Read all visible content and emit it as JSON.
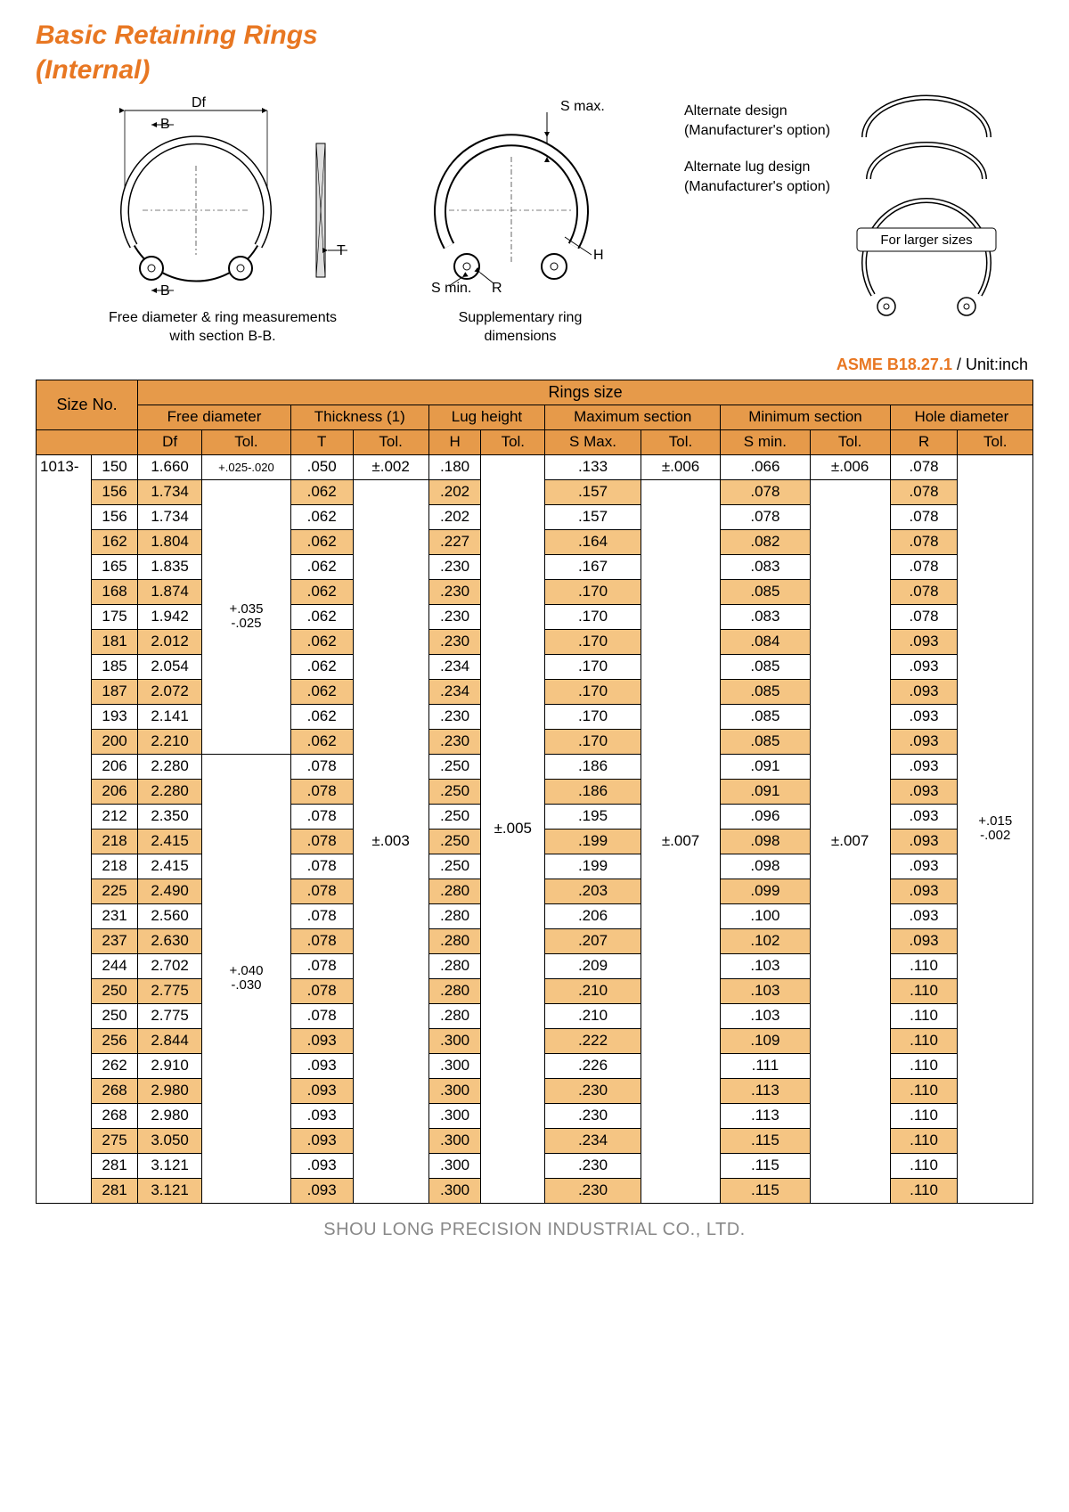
{
  "title_line1": "Basic Retaining Rings",
  "title_line2": "(Internal)",
  "diagrams": {
    "d1_Df": "Df",
    "d1_B1": "B",
    "d1_B2": "B",
    "d1_T": "T",
    "d1_caption": "Free diameter & ring measurements\nwith section B-B.",
    "d2_Smax": "S max.",
    "d2_Smin": "S min.",
    "d2_R": "R",
    "d2_H": "H",
    "d2_caption": "Supplementary ring\ndimensions",
    "side_alt": "Alternate design\n(Manufacturer's option)",
    "side_altlug": "Alternate lug design\n(Manufacturer's option)",
    "side_larger": "For larger sizes"
  },
  "spec": {
    "code": "ASME B18.27.1",
    "unit": " / Unit:inch"
  },
  "headers": {
    "sizeNo": "Size No.",
    "ringsSize": "Rings size",
    "groups": [
      "Free diameter",
      "Thickness (1)",
      "Lug height",
      "Maximum section",
      "Minimum section",
      "Hole diameter"
    ],
    "sub": [
      "Df",
      "Tol.",
      "T",
      "Tol.",
      "H",
      "Tol.",
      "S Max.",
      "Tol.",
      "S min.",
      "Tol.",
      "R",
      "Tol."
    ]
  },
  "prefix": "1013-",
  "colors": {
    "accent": "#e87722",
    "header_bg": "#e69a4a",
    "stripe_bg": "#f5c583",
    "border": "#000000",
    "footer_text": "#888888",
    "watermark": "#e8e8e8"
  },
  "typography": {
    "title_size": 30,
    "body_size": 17,
    "caption_size": 16,
    "footer_size": 20
  },
  "tolBlocks": {
    "df1": "+.025-.020",
    "df2_top": "+.035",
    "df2_bot": "-.025",
    "df3_top": "+.040",
    "df3_bot": "-.030",
    "t1": "±.002",
    "t2": "±.003",
    "h": "±.005",
    "smax1": "±.006",
    "smax2": "±.007",
    "smin1": "±.006",
    "smin2": "±.007",
    "r_top": "+.015",
    "r_bot": "-.002"
  },
  "rows": [
    {
      "n": "150",
      "df": "1.660",
      "t": ".050",
      "h": ".180",
      "sx": ".133",
      "sn": ".066",
      "r": ".078"
    },
    {
      "n": "156",
      "df": "1.734",
      "t": ".062",
      "h": ".202",
      "sx": ".157",
      "sn": ".078",
      "r": ".078"
    },
    {
      "n": "156",
      "df": "1.734",
      "t": ".062",
      "h": ".202",
      "sx": ".157",
      "sn": ".078",
      "r": ".078"
    },
    {
      "n": "162",
      "df": "1.804",
      "t": ".062",
      "h": ".227",
      "sx": ".164",
      "sn": ".082",
      "r": ".078"
    },
    {
      "n": "165",
      "df": "1.835",
      "t": ".062",
      "h": ".230",
      "sx": ".167",
      "sn": ".083",
      "r": ".078"
    },
    {
      "n": "168",
      "df": "1.874",
      "t": ".062",
      "h": ".230",
      "sx": ".170",
      "sn": ".085",
      "r": ".078"
    },
    {
      "n": "175",
      "df": "1.942",
      "t": ".062",
      "h": ".230",
      "sx": ".170",
      "sn": ".083",
      "r": ".078"
    },
    {
      "n": "181",
      "df": "2.012",
      "t": ".062",
      "h": ".230",
      "sx": ".170",
      "sn": ".084",
      "r": ".093"
    },
    {
      "n": "185",
      "df": "2.054",
      "t": ".062",
      "h": ".234",
      "sx": ".170",
      "sn": ".085",
      "r": ".093"
    },
    {
      "n": "187",
      "df": "2.072",
      "t": ".062",
      "h": ".234",
      "sx": ".170",
      "sn": ".085",
      "r": ".093"
    },
    {
      "n": "193",
      "df": "2.141",
      "t": ".062",
      "h": ".230",
      "sx": ".170",
      "sn": ".085",
      "r": ".093"
    },
    {
      "n": "200",
      "df": "2.210",
      "t": ".062",
      "h": ".230",
      "sx": ".170",
      "sn": ".085",
      "r": ".093"
    },
    {
      "n": "206",
      "df": "2.280",
      "t": ".078",
      "h": ".250",
      "sx": ".186",
      "sn": ".091",
      "r": ".093"
    },
    {
      "n": "206",
      "df": "2.280",
      "t": ".078",
      "h": ".250",
      "sx": ".186",
      "sn": ".091",
      "r": ".093"
    },
    {
      "n": "212",
      "df": "2.350",
      "t": ".078",
      "h": ".250",
      "sx": ".195",
      "sn": ".096",
      "r": ".093"
    },
    {
      "n": "218",
      "df": "2.415",
      "t": ".078",
      "h": ".250",
      "sx": ".199",
      "sn": ".098",
      "r": ".093"
    },
    {
      "n": "218",
      "df": "2.415",
      "t": ".078",
      "h": ".250",
      "sx": ".199",
      "sn": ".098",
      "r": ".093"
    },
    {
      "n": "225",
      "df": "2.490",
      "t": ".078",
      "h": ".280",
      "sx": ".203",
      "sn": ".099",
      "r": ".093"
    },
    {
      "n": "231",
      "df": "2.560",
      "t": ".078",
      "h": ".280",
      "sx": ".206",
      "sn": ".100",
      "r": ".093"
    },
    {
      "n": "237",
      "df": "2.630",
      "t": ".078",
      "h": ".280",
      "sx": ".207",
      "sn": ".102",
      "r": ".093"
    },
    {
      "n": "244",
      "df": "2.702",
      "t": ".078",
      "h": ".280",
      "sx": ".209",
      "sn": ".103",
      "r": ".110"
    },
    {
      "n": "250",
      "df": "2.775",
      "t": ".078",
      "h": ".280",
      "sx": ".210",
      "sn": ".103",
      "r": ".110"
    },
    {
      "n": "250",
      "df": "2.775",
      "t": ".078",
      "h": ".280",
      "sx": ".210",
      "sn": ".103",
      "r": ".110"
    },
    {
      "n": "256",
      "df": "2.844",
      "t": ".093",
      "h": ".300",
      "sx": ".222",
      "sn": ".109",
      "r": ".110"
    },
    {
      "n": "262",
      "df": "2.910",
      "t": ".093",
      "h": ".300",
      "sx": ".226",
      "sn": ".111",
      "r": ".110"
    },
    {
      "n": "268",
      "df": "2.980",
      "t": ".093",
      "h": ".300",
      "sx": ".230",
      "sn": ".113",
      "r": ".110"
    },
    {
      "n": "268",
      "df": "2.980",
      "t": ".093",
      "h": ".300",
      "sx": ".230",
      "sn": ".113",
      "r": ".110"
    },
    {
      "n": "275",
      "df": "3.050",
      "t": ".093",
      "h": ".300",
      "sx": ".234",
      "sn": ".115",
      "r": ".110"
    },
    {
      "n": "281",
      "df": "3.121",
      "t": ".093",
      "h": ".300",
      "sx": ".230",
      "sn": ".115",
      "r": ".110"
    },
    {
      "n": "281",
      "df": "3.121",
      "t": ".093",
      "h": ".300",
      "sx": ".230",
      "sn": ".115",
      "r": ".110"
    }
  ],
  "footer": "SHOU LONG PRECISION INDUSTRIAL CO., LTD."
}
